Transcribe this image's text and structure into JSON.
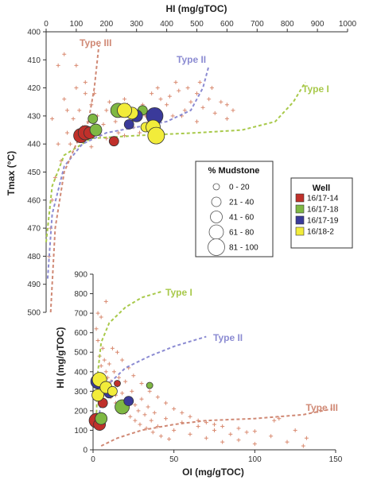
{
  "chart_data": [
    {
      "type": "scatter",
      "name": "tmax-vs-hi",
      "xlabel": "HI (mg/gTOC)",
      "ylabel": "Tmax (°C)",
      "xlim": [
        0,
        1000
      ],
      "ylim": [
        400,
        500
      ],
      "y_inverted": true,
      "x_axis_position": "top",
      "xticks": [
        "0",
        "100",
        "200",
        "300",
        "400",
        "500",
        "600",
        "700",
        "800",
        "900",
        "1000"
      ],
      "yticks": [
        "400",
        "410",
        "420",
        "430",
        "440",
        "450",
        "460",
        "470",
        "480",
        "490",
        "500"
      ],
      "curves": [
        {
          "label": "Type I",
          "color": "#a8c94a",
          "points": [
            [
              0,
              475
            ],
            [
              20,
              455
            ],
            [
              60,
              444
            ],
            [
              150,
              438
            ],
            [
              300,
              437
            ],
            [
              500,
              436
            ],
            [
              650,
              435
            ],
            [
              760,
              432
            ],
            [
              820,
              425
            ],
            [
              860,
              418
            ]
          ]
        },
        {
          "label": "Type II",
          "color": "#8b8bd2",
          "points": [
            [
              5,
              488
            ],
            [
              20,
              465
            ],
            [
              60,
              448
            ],
            [
              120,
              440
            ],
            [
              200,
              436
            ],
            [
              300,
              434
            ],
            [
              400,
              432
            ],
            [
              480,
              428
            ],
            [
              520,
              420
            ],
            [
              540,
              412
            ]
          ]
        },
        {
          "label": "Type III",
          "color": "#d08975",
          "points": [
            [
              15,
              500
            ],
            [
              30,
              470
            ],
            [
              60,
              450
            ],
            [
              100,
              440
            ],
            [
              140,
              432
            ],
            [
              160,
              420
            ],
            [
              170,
              410
            ],
            [
              175,
              405
            ]
          ]
        }
      ],
      "crosses": [
        [
          20,
          431
        ],
        [
          40,
          440
        ],
        [
          70,
          436
        ],
        [
          90,
          431
        ],
        [
          110,
          428
        ],
        [
          120,
          434
        ],
        [
          140,
          432
        ],
        [
          150,
          426
        ],
        [
          170,
          430
        ],
        [
          190,
          433
        ],
        [
          200,
          428
        ],
        [
          210,
          425
        ],
        [
          230,
          432
        ],
        [
          250,
          430
        ],
        [
          260,
          424
        ],
        [
          280,
          432
        ],
        [
          300,
          429
        ],
        [
          320,
          426
        ],
        [
          340,
          432
        ],
        [
          360,
          428
        ],
        [
          380,
          424
        ],
        [
          400,
          426
        ],
        [
          420,
          430
        ],
        [
          440,
          421
        ],
        [
          460,
          428
        ],
        [
          480,
          425
        ],
        [
          500,
          422
        ],
        [
          520,
          427
        ],
        [
          540,
          424
        ],
        [
          560,
          429
        ],
        [
          580,
          425
        ],
        [
          600,
          431
        ],
        [
          60,
          424
        ],
        [
          100,
          420
        ],
        [
          130,
          418
        ],
        [
          80,
          440
        ],
        [
          50,
          446
        ],
        [
          150,
          441
        ],
        [
          180,
          437
        ],
        [
          240,
          436
        ],
        [
          260,
          437
        ],
        [
          310,
          436
        ],
        [
          330,
          430
        ],
        [
          350,
          422
        ],
        [
          370,
          420
        ],
        [
          410,
          423
        ],
        [
          430,
          418
        ],
        [
          470,
          420
        ],
        [
          510,
          418
        ],
        [
          550,
          420
        ],
        [
          600,
          426
        ],
        [
          30,
          452
        ],
        [
          20,
          460
        ],
        [
          15,
          470
        ],
        [
          10,
          480
        ],
        [
          40,
          412
        ],
        [
          60,
          408
        ],
        [
          100,
          412
        ],
        [
          130,
          422
        ],
        [
          200,
          438
        ],
        [
          220,
          440
        ],
        [
          270,
          426
        ],
        [
          290,
          434
        ],
        [
          380,
          431
        ],
        [
          450,
          430
        ],
        [
          500,
          432
        ],
        [
          620,
          428
        ],
        [
          160,
          422
        ],
        [
          70,
          428
        ]
      ],
      "circles": [
        {
          "x": 115,
          "y": 437,
          "well": "16/17-14",
          "size": "61 - 80"
        },
        {
          "x": 130,
          "y": 436,
          "well": "16/17-14",
          "size": "61 - 80"
        },
        {
          "x": 145,
          "y": 436,
          "well": "16/17-14",
          "size": "41 - 60"
        },
        {
          "x": 225,
          "y": 439,
          "well": "16/17-14",
          "size": "21 - 40"
        },
        {
          "x": 155,
          "y": 431,
          "well": "16/17-18",
          "size": "21 - 40"
        },
        {
          "x": 165,
          "y": 435,
          "well": "16/17-18",
          "size": "41 - 60"
        },
        {
          "x": 238,
          "y": 428,
          "well": "16/17-18",
          "size": "61 - 80"
        },
        {
          "x": 320,
          "y": 428,
          "well": "16/17-18",
          "size": "21 - 40"
        },
        {
          "x": 275,
          "y": 433,
          "well": "16/17-19",
          "size": "21 - 40"
        },
        {
          "x": 300,
          "y": 430,
          "well": "16/17-19",
          "size": "41 - 60"
        },
        {
          "x": 360,
          "y": 430,
          "well": "16/17-19",
          "size": "81 - 100"
        },
        {
          "x": 285,
          "y": 429,
          "well": "16/18-2",
          "size": "41 - 60"
        },
        {
          "x": 260,
          "y": 428,
          "well": "16/18-2",
          "size": "61 - 80"
        },
        {
          "x": 330,
          "y": 434,
          "well": "16/18-2",
          "size": "21 - 40"
        },
        {
          "x": 355,
          "y": 434,
          "well": "16/18-2",
          "size": "61 - 80"
        },
        {
          "x": 365,
          "y": 437,
          "well": "16/18-2",
          "size": "81 - 100"
        }
      ]
    },
    {
      "type": "scatter",
      "name": "hi-vs-oi",
      "xlabel": "OI (mg/gTOC)",
      "ylabel": "HI (mg/gTOC)",
      "xlim": [
        0,
        150
      ],
      "ylim": [
        0,
        900
      ],
      "xticks": [
        "0",
        "50",
        "100",
        "150"
      ],
      "yticks": [
        "0",
        "100",
        "200",
        "300",
        "400",
        "500",
        "600",
        "700",
        "800",
        "900"
      ],
      "curves": [
        {
          "label": "Type I",
          "color": "#a8c94a",
          "points": [
            [
              2,
              160
            ],
            [
              3,
              400
            ],
            [
              5,
              550
            ],
            [
              10,
              650
            ],
            [
              20,
              730
            ],
            [
              30,
              780
            ],
            [
              42,
              810
            ]
          ]
        },
        {
          "label": "Type II",
          "color": "#8b8bd2",
          "points": [
            [
              3,
              130
            ],
            [
              5,
              250
            ],
            [
              10,
              340
            ],
            [
              20,
              420
            ],
            [
              35,
              480
            ],
            [
              50,
              530
            ],
            [
              60,
              555
            ],
            [
              70,
              580
            ]
          ]
        },
        {
          "label": "Type III",
          "color": "#d08975",
          "points": [
            [
              5,
              20
            ],
            [
              15,
              60
            ],
            [
              30,
              100
            ],
            [
              50,
              130
            ],
            [
              70,
              150
            ],
            [
              100,
              160
            ],
            [
              130,
              180
            ],
            [
              148,
              210
            ]
          ]
        }
      ],
      "crosses": [
        [
          2,
          620
        ],
        [
          3,
          560
        ],
        [
          4,
          480
        ],
        [
          5,
          430
        ],
        [
          6,
          520
        ],
        [
          7,
          460
        ],
        [
          8,
          400
        ],
        [
          9,
          370
        ],
        [
          10,
          440
        ],
        [
          11,
          350
        ],
        [
          12,
          310
        ],
        [
          13,
          400
        ],
        [
          14,
          280
        ],
        [
          15,
          330
        ],
        [
          16,
          370
        ],
        [
          18,
          290
        ],
        [
          20,
          350
        ],
        [
          22,
          260
        ],
        [
          24,
          300
        ],
        [
          26,
          230
        ],
        [
          28,
          200
        ],
        [
          30,
          260
        ],
        [
          32,
          180
        ],
        [
          34,
          220
        ],
        [
          36,
          150
        ],
        [
          38,
          190
        ],
        [
          40,
          120
        ],
        [
          45,
          160
        ],
        [
          50,
          100
        ],
        [
          55,
          140
        ],
        [
          60,
          80
        ],
        [
          65,
          120
        ],
        [
          70,
          60
        ],
        [
          75,
          100
        ],
        [
          80,
          40
        ],
        [
          85,
          80
        ],
        [
          90,
          50
        ],
        [
          95,
          90
        ],
        [
          100,
          30
        ],
        [
          110,
          70
        ],
        [
          120,
          40
        ],
        [
          130,
          20
        ],
        [
          3,
          700
        ],
        [
          5,
          680
        ],
        [
          8,
          760
        ],
        [
          12,
          520
        ],
        [
          15,
          500
        ],
        [
          18,
          460
        ],
        [
          22,
          420
        ],
        [
          25,
          380
        ],
        [
          30,
          340
        ],
        [
          35,
          300
        ],
        [
          40,
          270
        ],
        [
          45,
          240
        ],
        [
          50,
          210
        ],
        [
          55,
          190
        ],
        [
          60,
          170
        ],
        [
          65,
          150
        ],
        [
          70,
          140
        ],
        [
          75,
          130
        ],
        [
          80,
          120
        ],
        [
          90,
          110
        ],
        [
          100,
          95
        ],
        [
          112,
          150
        ],
        [
          115,
          160
        ],
        [
          125,
          100
        ],
        [
          132,
          60
        ],
        [
          4,
          380
        ],
        [
          6,
          360
        ],
        [
          9,
          300
        ],
        [
          11,
          270
        ],
        [
          14,
          240
        ],
        [
          17,
          210
        ],
        [
          20,
          190
        ],
        [
          23,
          170
        ],
        [
          26,
          150
        ],
        [
          29,
          130
        ],
        [
          33,
          110
        ],
        [
          37,
          90
        ],
        [
          42,
          70
        ],
        [
          47,
          55
        ]
      ],
      "circles": [
        {
          "x": 2,
          "y": 150,
          "well": "16/17-14",
          "size": "61 - 80"
        },
        {
          "x": 4,
          "y": 130,
          "well": "16/17-14",
          "size": "41 - 60"
        },
        {
          "x": 6,
          "y": 240,
          "well": "16/17-14",
          "size": "21 - 40"
        },
        {
          "x": 15,
          "y": 340,
          "well": "16/17-14",
          "size": "0 - 20"
        },
        {
          "x": 5,
          "y": 160,
          "well": "16/17-18",
          "size": "41 - 60"
        },
        {
          "x": 18,
          "y": 220,
          "well": "16/17-18",
          "size": "61 - 80"
        },
        {
          "x": 35,
          "y": 330,
          "well": "16/17-18",
          "size": "0 - 20"
        },
        {
          "x": 3,
          "y": 350,
          "well": "16/17-19",
          "size": "61 - 80"
        },
        {
          "x": 10,
          "y": 290,
          "well": "16/17-19",
          "size": "21 - 40"
        },
        {
          "x": 22,
          "y": 250,
          "well": "16/17-19",
          "size": "21 - 40"
        },
        {
          "x": 4,
          "y": 360,
          "well": "16/18-2",
          "size": "61 - 80"
        },
        {
          "x": 3,
          "y": 280,
          "well": "16/18-2",
          "size": "41 - 60"
        },
        {
          "x": 8,
          "y": 320,
          "well": "16/18-2",
          "size": "41 - 60"
        },
        {
          "x": 12,
          "y": 300,
          "well": "16/18-2",
          "size": "21 - 40"
        }
      ]
    }
  ],
  "legend": {
    "size_title": "% Mudstone",
    "size_classes": [
      "0 - 20",
      "21 - 40",
      "41 - 60",
      "61 - 80",
      "81 - 100"
    ],
    "well_title": "Well",
    "wells": [
      {
        "name": "16/17-14",
        "color": "#c0302a"
      },
      {
        "name": "16/17-18",
        "color": "#7fb843"
      },
      {
        "name": "16/17-19",
        "color": "#3a3a9a"
      },
      {
        "name": "16/18-2",
        "color": "#f2ec3a"
      }
    ]
  },
  "colors": {
    "cross": "#d98a70",
    "axis": "#333333"
  }
}
